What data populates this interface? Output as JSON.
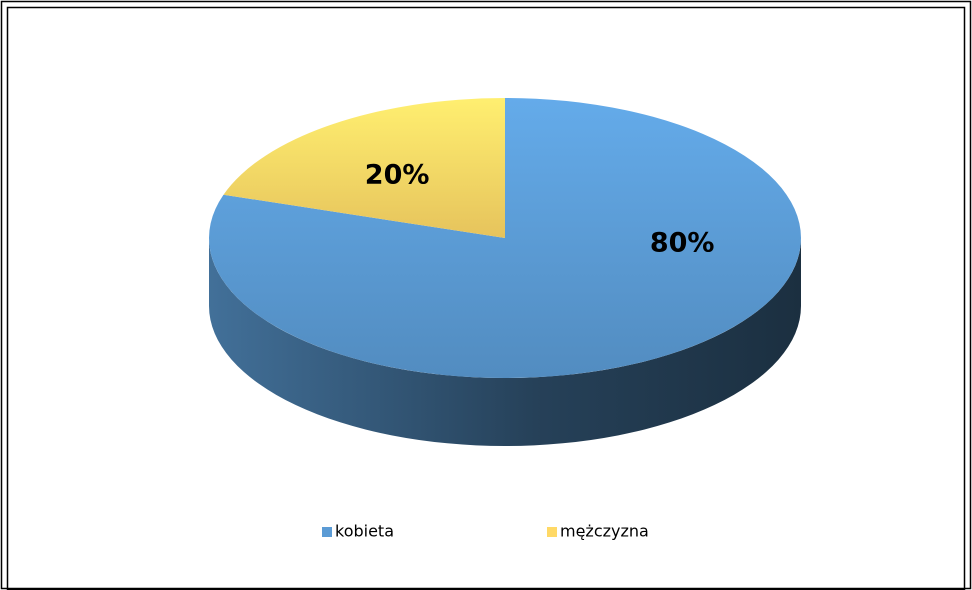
{
  "chart_data": {
    "type": "pie",
    "style": "3d",
    "categories": [
      "kobieta",
      "mężczyzna"
    ],
    "values": [
      80,
      20
    ],
    "value_labels": [
      "80%",
      "20%"
    ],
    "colors": [
      "#5b9bd5",
      "#ffd966"
    ],
    "legend": "bottom"
  }
}
